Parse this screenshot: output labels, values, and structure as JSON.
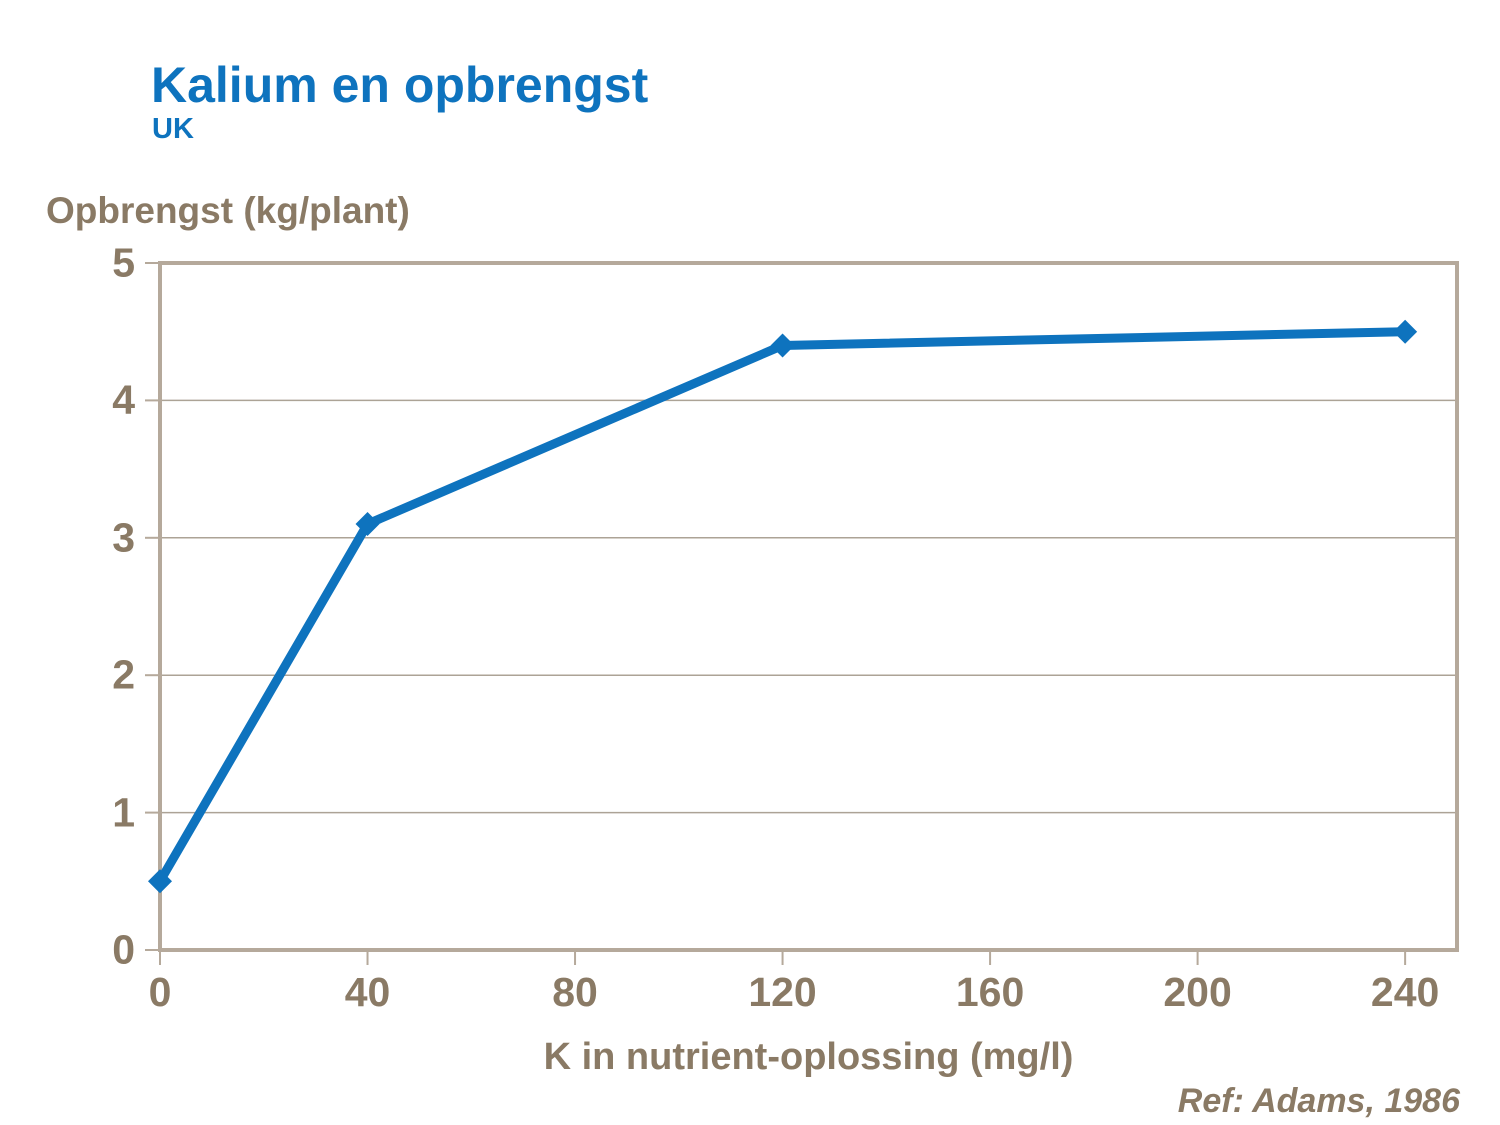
{
  "page": {
    "title": "Kalium en opbrengst",
    "subtitle": "UK",
    "reference": "Ref: Adams, 1986"
  },
  "chart_data": {
    "type": "line",
    "title": "Kalium en opbrengst",
    "subtitle": "UK",
    "xlabel": "K in nutrient-oplossing (mg/l)",
    "ylabel": "Opbrengst (kg/plant)",
    "series": [
      {
        "name": "Opbrengst",
        "x": [
          0,
          40,
          120,
          240
        ],
        "y": [
          0.5,
          3.1,
          4.4,
          4.5
        ]
      }
    ],
    "xlim": [
      0,
      250
    ],
    "ylim": [
      0,
      5
    ],
    "xticks": [
      0,
      40,
      80,
      120,
      160,
      200,
      240
    ],
    "yticks": [
      0,
      1,
      2,
      3,
      4,
      5
    ],
    "grid": "horizontal-only",
    "legend": "none",
    "marker": "diamond",
    "annotation": "Ref: Adams, 1986",
    "colors": {
      "line": "#0E73BE",
      "title_text": "#0E73BE",
      "axis_text": "#8A7A65",
      "plot_border": "#B5A99B",
      "gridline": "#ACA396"
    }
  }
}
